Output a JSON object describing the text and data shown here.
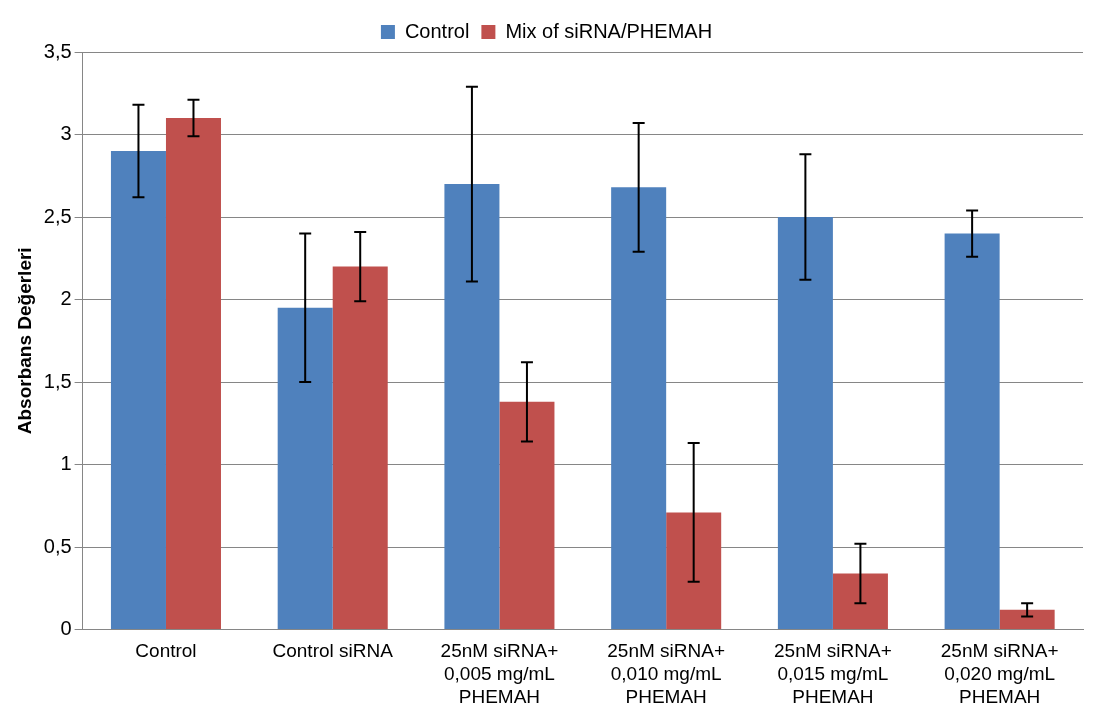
{
  "chart_data": {
    "type": "bar",
    "ylabel": "Absorbans Değerleri",
    "categories": [
      "Control",
      "Control siRNA",
      "25nM siRNA+ 0,005 mg/mL PHEMAH",
      "25nM siRNA+ 0,010 mg/mL PHEMAH",
      "25nM siRNA+ 0,015 mg/mL PHEMAH",
      "25nM siRNA+ 0,020 mg/mL PHEMAH"
    ],
    "series": [
      {
        "name": "Control",
        "color": "#4f81bd",
        "values": [
          2.9,
          1.95,
          2.7,
          2.68,
          2.5,
          2.4
        ],
        "errors": [
          0.28,
          0.45,
          0.59,
          0.39,
          0.38,
          0.14
        ]
      },
      {
        "name": "Mix of siRNA/PHEMAH",
        "color": "#c0504d",
        "values": [
          3.1,
          2.2,
          1.38,
          0.71,
          0.34,
          0.12
        ],
        "errors": [
          0.11,
          0.21,
          0.24,
          0.42,
          0.18,
          0.04
        ]
      }
    ],
    "ylim": [
      0,
      3.5
    ],
    "yticks": [
      0,
      {
        "value": 0.5,
        "label": "0,5"
      },
      1,
      {
        "value": 1.5,
        "label": "1,5"
      },
      2,
      {
        "value": 2.5,
        "label": "2,5"
      },
      3,
      {
        "value": 3.5,
        "label": "3,5"
      }
    ],
    "grid": "y",
    "legend": "top"
  }
}
